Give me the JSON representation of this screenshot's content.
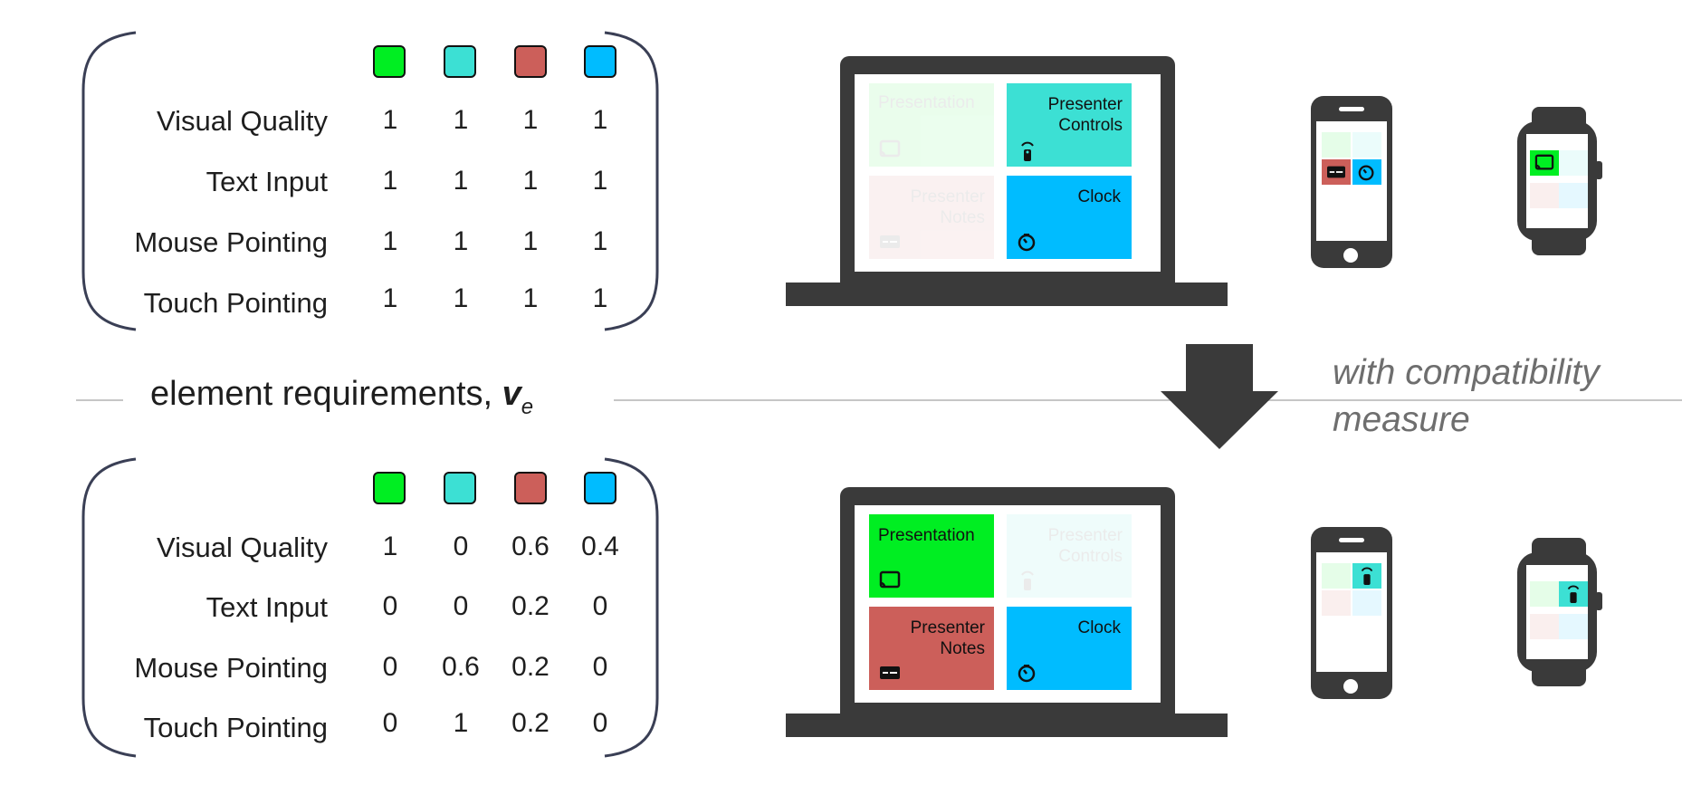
{
  "colors": {
    "presentation": "#00ee22",
    "presenter_controls": "#3ce0d4",
    "presenter_notes": "#cc5f5a",
    "clock": "#00bcff",
    "device_dark": "#3a3a3a",
    "divider": "#c6c6c6",
    "muted_text": "#6e6e6e"
  },
  "column_keys": [
    "presentation",
    "presenter_controls",
    "presenter_notes",
    "clock"
  ],
  "row_labels": [
    "Visual Quality",
    "Text Input",
    "Mouse Pointing",
    "Touch Pointing"
  ],
  "matrix_top": {
    "rows": [
      [
        "1",
        "1",
        "1",
        "1"
      ],
      [
        "1",
        "1",
        "1",
        "1"
      ],
      [
        "1",
        "1",
        "1",
        "1"
      ],
      [
        "1",
        "1",
        "1",
        "1"
      ]
    ]
  },
  "matrix_bottom": {
    "rows": [
      [
        "1",
        "0",
        "0.6",
        "0.4"
      ],
      [
        "0",
        "0",
        "0.2",
        "0"
      ],
      [
        "0",
        "0.6",
        "0.2",
        "0"
      ],
      [
        "0",
        "1",
        "0.2",
        "0"
      ]
    ]
  },
  "divider": {
    "label": "element requirements,",
    "symbol": "v",
    "subscript": "e"
  },
  "compatibility": {
    "line1": "with compatibility",
    "line2": "measure"
  },
  "tiles": {
    "presentation": {
      "line1": "Presentation",
      "line2": "",
      "icon": "cast-icon"
    },
    "presenter_controls": {
      "line1": "Presenter",
      "line2": "Controls",
      "icon": "remote-icon"
    },
    "presenter_notes": {
      "line1": "Presenter",
      "line2": "Notes",
      "icon": "notes-icon"
    },
    "clock": {
      "line1": "Clock",
      "line2": "",
      "icon": "timer-icon"
    }
  },
  "assignment_top": {
    "laptop": [
      "presenter_controls",
      "clock"
    ],
    "phone": [
      "presenter_notes",
      "clock"
    ],
    "watch": [
      "presentation"
    ]
  },
  "assignment_bottom": {
    "laptop": [
      "presentation",
      "presenter_notes",
      "clock"
    ],
    "phone": [
      "presenter_controls"
    ],
    "watch": [
      "presenter_controls"
    ]
  }
}
